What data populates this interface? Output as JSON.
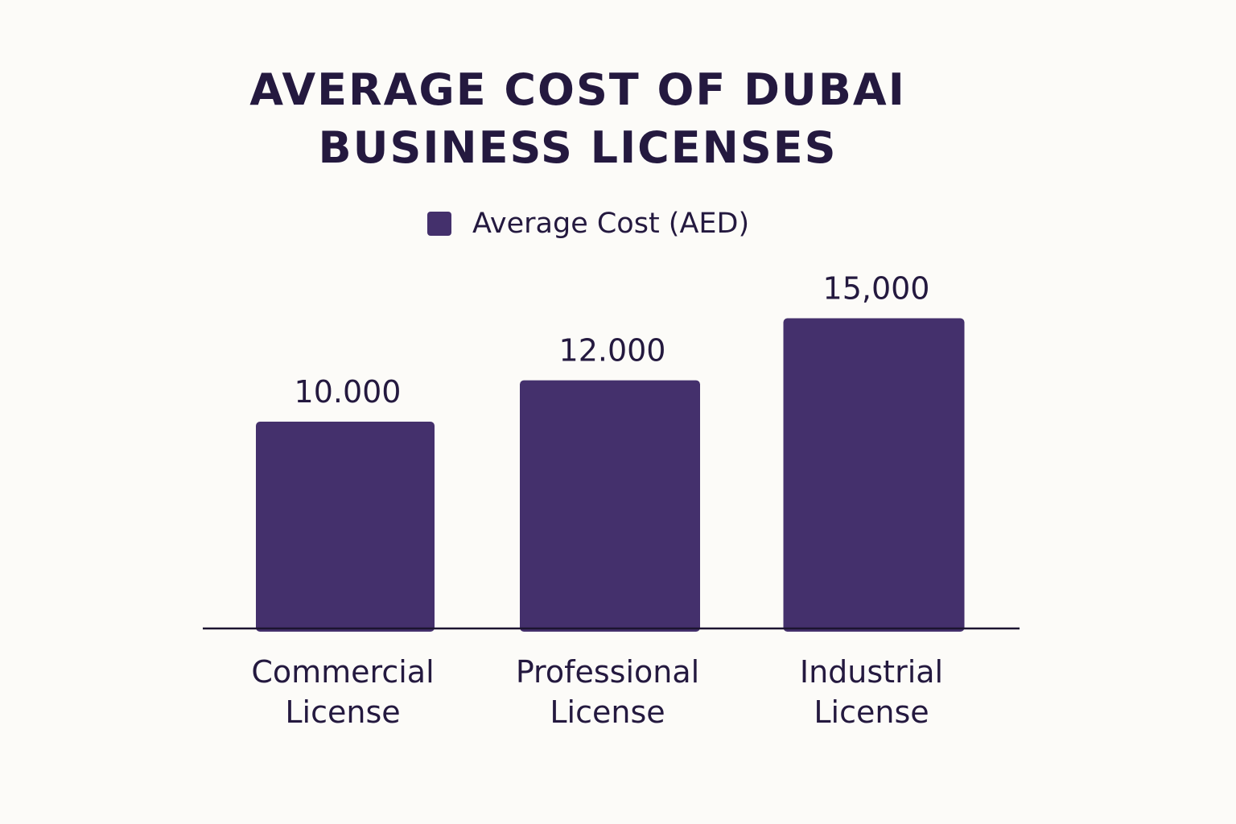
{
  "chart_data": {
    "type": "bar",
    "title_lines": [
      "AVERAGE COST OF DUBAI",
      "BUSINESS LICENSES"
    ],
    "categories": [
      [
        "Commercial",
        "License"
      ],
      [
        "Professional",
        "License"
      ],
      [
        "Industrial",
        "License"
      ]
    ],
    "series": [
      {
        "name": "Average Cost (AED)",
        "values": [
          10000,
          12000,
          15000
        ],
        "labels": [
          "10.000",
          "12.000",
          "15,000"
        ]
      }
    ],
    "xlabel": "",
    "ylabel": "",
    "ylim": [
      0,
      16000
    ],
    "grid": false,
    "legend_position": "top-center",
    "colors": {
      "bar": "#44306c",
      "text": "#24193f",
      "axis": "#1c1430",
      "background": "#fcfbf8"
    }
  }
}
